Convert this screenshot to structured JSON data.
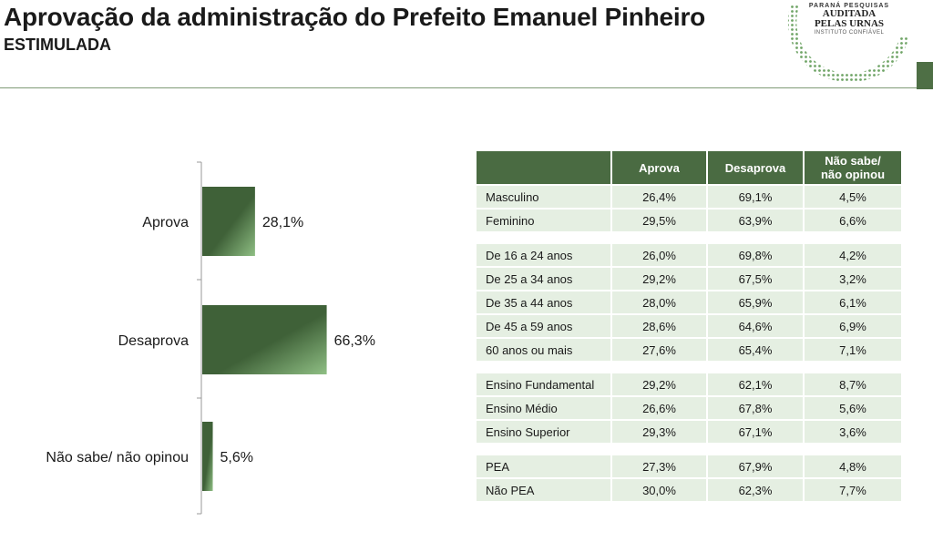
{
  "header": {
    "title": "Aprovação da administração do Prefeito Emanuel Pinheiro",
    "subtitle": "ESTIMULADA"
  },
  "seal": {
    "line1": "PARANÁ PESQUISAS",
    "line2": "AUDITADA",
    "line3": "PELAS URNAS",
    "line4": "INSTITUTO CONFIÁVEL"
  },
  "colors": {
    "bar_dark": "#3f6138",
    "bar_light": "#8fbf84",
    "header_green": "#4a6b42",
    "row_green": "#e5efe2"
  },
  "chart_data": {
    "type": "bar",
    "orientation": "horizontal",
    "categories": [
      "Aprova",
      "Desaprova",
      "Não sabe/ não opinou"
    ],
    "values": [
      28.1,
      66.3,
      5.6
    ],
    "value_labels": [
      "28,1%",
      "66,3%",
      "5,6%"
    ],
    "unit": "%",
    "xlim": [
      0,
      100
    ],
    "grid": false,
    "legend": false
  },
  "table": {
    "headers": [
      "",
      "Aprova",
      "Desaprova",
      "Não sabe/ não opinou"
    ],
    "groups": [
      [
        [
          "Masculino",
          "26,4%",
          "69,1%",
          "4,5%"
        ],
        [
          "Feminino",
          "29,5%",
          "63,9%",
          "6,6%"
        ]
      ],
      [
        [
          "De 16 a 24 anos",
          "26,0%",
          "69,8%",
          "4,2%"
        ],
        [
          "De 25 a 34 anos",
          "29,2%",
          "67,5%",
          "3,2%"
        ],
        [
          "De 35 a 44 anos",
          "28,0%",
          "65,9%",
          "6,1%"
        ],
        [
          "De 45 a 59 anos",
          "28,6%",
          "64,6%",
          "6,9%"
        ],
        [
          "60 anos ou mais",
          "27,6%",
          "65,4%",
          "7,1%"
        ]
      ],
      [
        [
          "Ensino Fundamental",
          "29,2%",
          "62,1%",
          "8,7%"
        ],
        [
          "Ensino Médio",
          "26,6%",
          "67,8%",
          "5,6%"
        ],
        [
          "Ensino Superior",
          "29,3%",
          "67,1%",
          "3,6%"
        ]
      ],
      [
        [
          "PEA",
          "27,3%",
          "67,9%",
          "4,8%"
        ],
        [
          "Não PEA",
          "30,0%",
          "62,3%",
          "7,7%"
        ]
      ]
    ]
  }
}
